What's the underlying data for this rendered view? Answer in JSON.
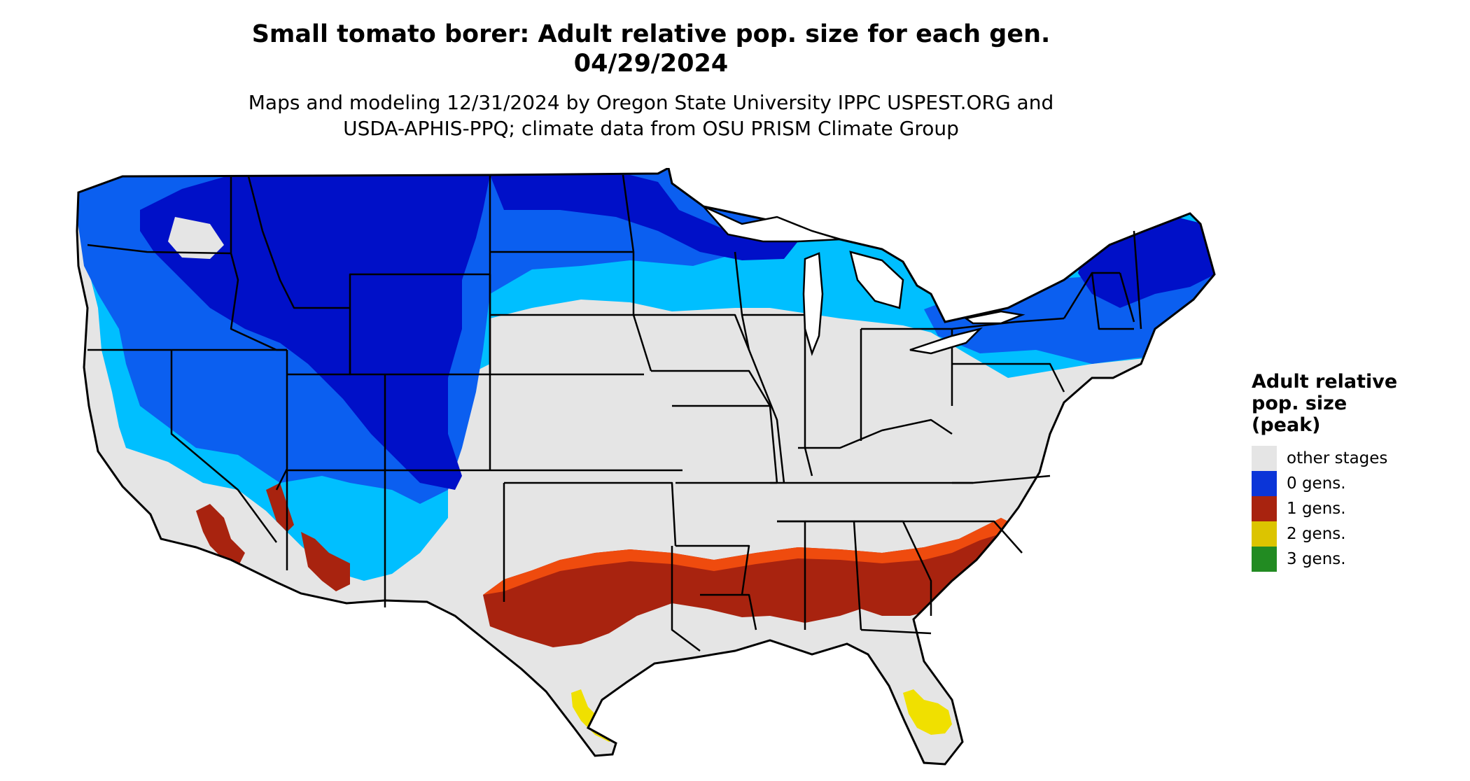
{
  "title": {
    "line1": "Small tomato borer: Adult relative pop. size for each gen.",
    "line2": "04/29/2024"
  },
  "subtitle": {
    "line1": "Maps and modeling 12/31/2024 by Oregon State University IPPC USPEST.ORG and",
    "line2": "USDA-APHIS-PPQ; climate data from OSU PRISM Climate Group"
  },
  "legend": {
    "title_line1": "Adult relative",
    "title_line2": "pop. size",
    "title_line3": "(peak)",
    "items": [
      {
        "label": "other stages",
        "color": "#e5e5e5"
      },
      {
        "label": "0 gens.",
        "color": "#0b35d8"
      },
      {
        "label": "1 gens.",
        "color": "#a8230f"
      },
      {
        "label": "2 gens.",
        "color": "#dcc400"
      },
      {
        "label": "3 gens.",
        "color": "#228b22"
      }
    ]
  },
  "map": {
    "region": "Contiguous United States",
    "colors": {
      "other_stages": "#e5e5e5",
      "zero_gens_dark": "#0010c8",
      "zero_gens_mid": "#0b5ff0",
      "zero_gens_light": "#00bfff",
      "one_gen_dark": "#a8230f",
      "one_gen_bright": "#ef4b0e",
      "two_gens": "#f0e000",
      "border": "#000000"
    }
  }
}
